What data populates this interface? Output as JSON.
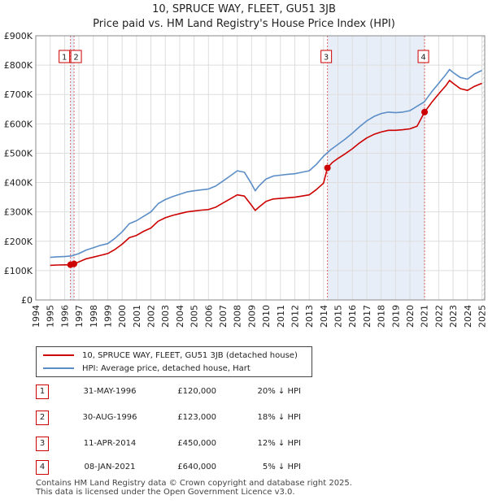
{
  "title_line1": "10, SPRUCE WAY, FLEET, GU51 3JB",
  "title_line2": "Price paid vs. HM Land Registry's House Price Index (HPI)",
  "colors": {
    "price": "#cc0000",
    "hpi": "#5b8ec7",
    "band": "#e8eef8",
    "marker_box": "#cc0000"
  },
  "chart_data": {
    "type": "line",
    "title": "Price paid vs. HM Land Registry's House Price Index (HPI)",
    "xlim": [
      1994.0,
      2025.2
    ],
    "ylim": [
      0,
      900000
    ],
    "y_ticks": [
      0,
      100000,
      200000,
      300000,
      400000,
      500000,
      600000,
      700000,
      800000,
      900000
    ],
    "y_tick_labels": [
      "£0",
      "£100K",
      "£200K",
      "£300K",
      "£400K",
      "£500K",
      "£600K",
      "£700K",
      "£800K",
      "£900K"
    ],
    "x_ticks": [
      "1994",
      "1995",
      "1996",
      "1997",
      "1998",
      "1999",
      "2000",
      "2001",
      "2002",
      "2003",
      "2004",
      "2005",
      "2006",
      "2007",
      "2008",
      "2009",
      "2010",
      "2011",
      "2012",
      "2013",
      "2014",
      "2015",
      "2016",
      "2017",
      "2018",
      "2019",
      "2020",
      "2021",
      "2022",
      "2023",
      "2024",
      "2025"
    ],
    "grid": true,
    "legend_position": "below",
    "series": [
      {
        "name": "HPI: Average price, detached house, Hart",
        "x": [
          1995.0,
          1995.5,
          1996.0,
          1996.5,
          1997.0,
          1997.5,
          1998.0,
          1998.5,
          1999.0,
          1999.5,
          2000.0,
          2000.5,
          2001.0,
          2001.5,
          2002.0,
          2002.5,
          2003.0,
          2003.5,
          2004.0,
          2004.5,
          2005.0,
          2005.5,
          2006.0,
          2006.5,
          2007.0,
          2007.5,
          2008.0,
          2008.5,
          2009.0,
          2009.25,
          2009.5,
          2010.0,
          2010.5,
          2011.0,
          2011.5,
          2012.0,
          2012.5,
          2013.0,
          2013.5,
          2014.0,
          2014.5,
          2015.0,
          2015.5,
          2016.0,
          2016.5,
          2017.0,
          2017.5,
          2018.0,
          2018.5,
          2019.0,
          2019.5,
          2020.0,
          2020.5,
          2021.0,
          2021.5,
          2022.0,
          2022.5,
          2022.75,
          2023.0,
          2023.5,
          2024.0,
          2024.5,
          2025.0
        ],
        "values": [
          145000,
          147000,
          148000,
          150000,
          158000,
          170000,
          178000,
          186000,
          192000,
          210000,
          232000,
          260000,
          270000,
          285000,
          300000,
          328000,
          342000,
          352000,
          360000,
          368000,
          372000,
          375000,
          378000,
          388000,
          405000,
          422000,
          440000,
          435000,
          395000,
          372000,
          388000,
          412000,
          422000,
          425000,
          428000,
          430000,
          435000,
          440000,
          462000,
          490000,
          512000,
          530000,
          548000,
          568000,
          590000,
          610000,
          625000,
          635000,
          640000,
          638000,
          640000,
          645000,
          660000,
          675000,
          708000,
          738000,
          768000,
          785000,
          775000,
          758000,
          752000,
          770000,
          782000
        ]
      },
      {
        "name": "10, SPRUCE WAY, FLEET, GU51 3JB (detached house)",
        "x": [
          1995.0,
          1995.5,
          1996.0,
          1996.41,
          1996.66,
          1997.0,
          1997.5,
          1998.0,
          1998.5,
          1999.0,
          1999.5,
          2000.0,
          2000.5,
          2001.0,
          2001.5,
          2002.0,
          2002.5,
          2003.0,
          2003.5,
          2004.0,
          2004.5,
          2005.0,
          2005.5,
          2006.0,
          2006.5,
          2007.0,
          2007.5,
          2008.0,
          2008.5,
          2009.0,
          2009.25,
          2009.5,
          2010.0,
          2010.5,
          2011.0,
          2011.5,
          2012.0,
          2012.5,
          2013.0,
          2013.5,
          2014.0,
          2014.27,
          2014.6,
          2015.0,
          2015.5,
          2016.0,
          2016.5,
          2017.0,
          2017.5,
          2018.0,
          2018.5,
          2019.0,
          2019.5,
          2020.0,
          2020.5,
          2021.02,
          2021.5,
          2022.0,
          2022.5,
          2022.75,
          2023.0,
          2023.5,
          2024.0,
          2024.5,
          2025.0
        ],
        "values": [
          118000,
          119000,
          119500,
          120000,
          123000,
          130000,
          140000,
          146000,
          152000,
          158000,
          172000,
          190000,
          212000,
          220000,
          234000,
          245000,
          268000,
          280000,
          288000,
          294000,
          300000,
          303000,
          306000,
          308000,
          316000,
          330000,
          344000,
          358000,
          354000,
          322000,
          305000,
          316000,
          336000,
          344000,
          346000,
          348000,
          350000,
          354000,
          358000,
          376000,
          398000,
          450000,
          468000,
          482000,
          498000,
          515000,
          535000,
          552000,
          564000,
          572000,
          578000,
          578000,
          580000,
          583000,
          592000,
          640000,
          672000,
          702000,
          730000,
          748000,
          738000,
          720000,
          714000,
          728000,
          738000
        ]
      }
    ],
    "transactions": [
      {
        "id": "1",
        "x": 1996.41,
        "value": 120000
      },
      {
        "id": "2",
        "x": 1996.66,
        "value": 123000
      },
      {
        "id": "3",
        "x": 2014.27,
        "value": 450000
      },
      {
        "id": "4",
        "x": 2021.02,
        "value": 640000
      }
    ],
    "shaded_ranges": [
      [
        1996.41,
        1996.66
      ],
      [
        2014.27,
        2021.02
      ]
    ],
    "hatched_after": 2025.0
  },
  "legend": {
    "price_label": "10, SPRUCE WAY, FLEET, GU51 3JB (detached house)",
    "hpi_label": "HPI: Average price, detached house, Hart"
  },
  "table": [
    {
      "num": "1",
      "date": "31-MAY-1996",
      "price": "£120,000",
      "pct": "20% ↓ HPI"
    },
    {
      "num": "2",
      "date": "30-AUG-1996",
      "price": "£123,000",
      "pct": "18% ↓ HPI"
    },
    {
      "num": "3",
      "date": "11-APR-2014",
      "price": "£450,000",
      "pct": "12% ↓ HPI"
    },
    {
      "num": "4",
      "date": "08-JAN-2021",
      "price": "£640,000",
      "pct": "5% ↓ HPI"
    }
  ],
  "footer_line1": "Contains HM Land Registry data © Crown copyright and database right 2025.",
  "footer_line2": "This data is licensed under the Open Government Licence v3.0."
}
